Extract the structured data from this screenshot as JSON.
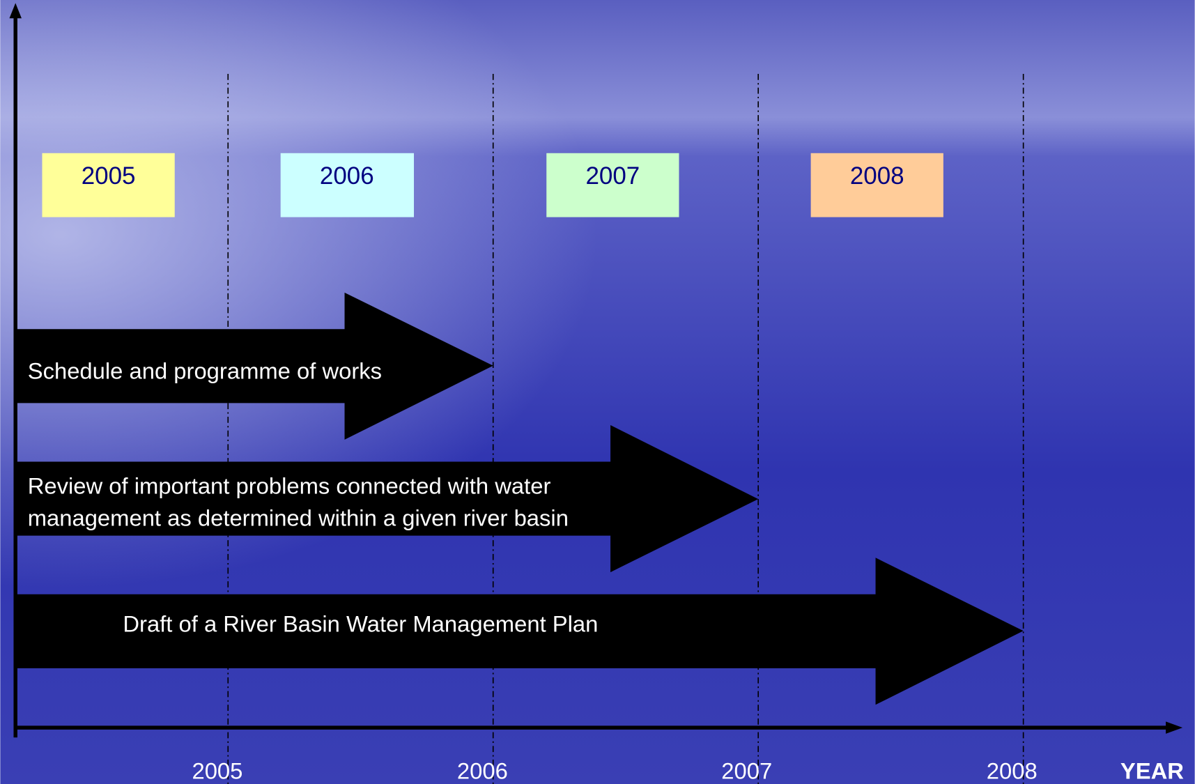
{
  "year_boxes": [
    "2005",
    "2006",
    "2007",
    "2008"
  ],
  "tasks": [
    {
      "lines": [
        "Schedule and programme of works"
      ]
    },
    {
      "lines": [
        "Review of important problems connected with water",
        "management as determined within a given river basin"
      ]
    },
    {
      "lines": [
        "Draft of a River Basin Water Management Plan"
      ]
    }
  ],
  "axis": {
    "labels": [
      "2005",
      "2006",
      "2007",
      "2008"
    ],
    "title": "YEAR"
  }
}
